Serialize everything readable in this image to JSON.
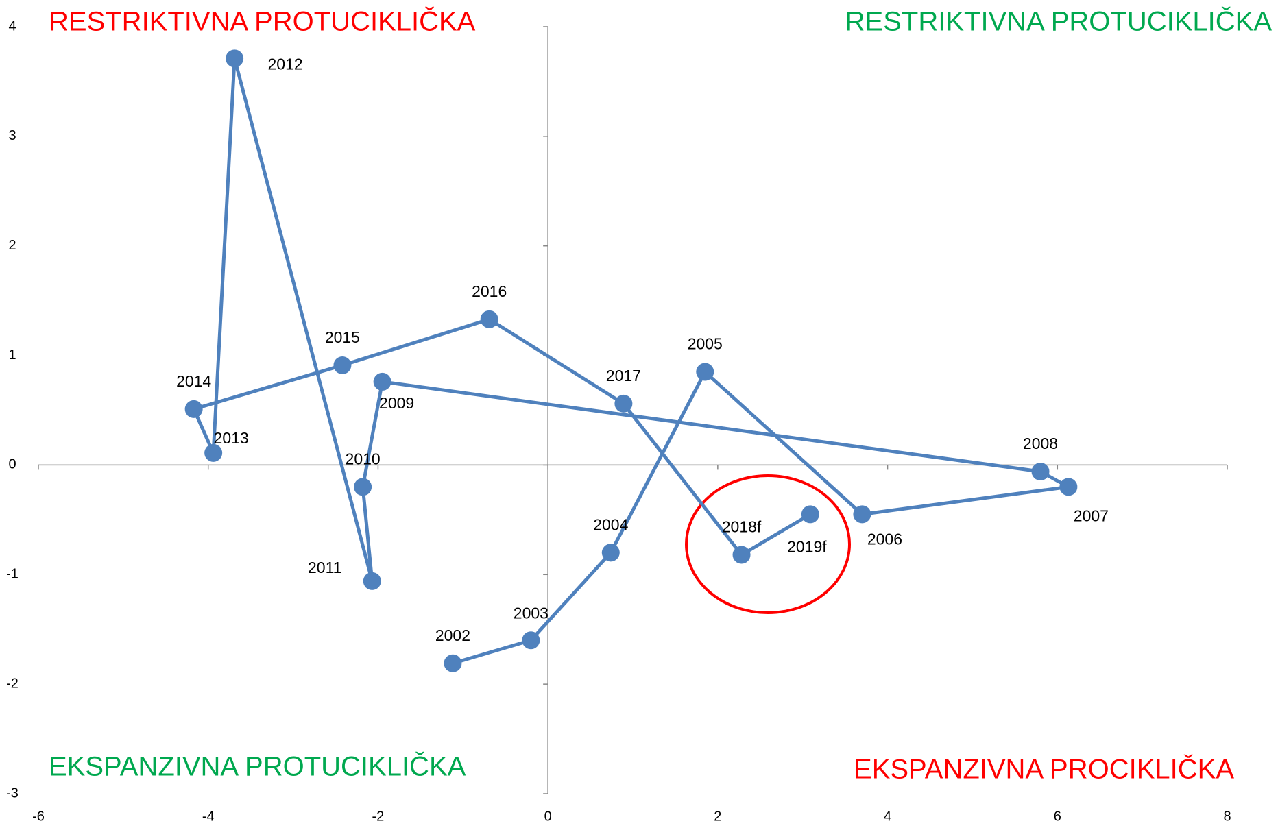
{
  "chart_data": {
    "type": "scatter",
    "connected": true,
    "series": [
      {
        "color": "#4f81bd",
        "labels": [
          "2002",
          "2003",
          "2004",
          "2005",
          "2006",
          "2007",
          "2008",
          "2009",
          "2010",
          "2011",
          "2012",
          "2013",
          "2014",
          "2015",
          "2016",
          "2017",
          "2018f",
          "2019f"
        ],
        "x": [
          -1.12,
          -0.2,
          0.74,
          1.85,
          3.7,
          6.13,
          5.8,
          -1.95,
          -2.18,
          -2.07,
          -3.69,
          -3.94,
          -4.17,
          -2.42,
          -0.69,
          0.89,
          2.28,
          3.09
        ],
        "values": [
          -1.81,
          -1.6,
          -0.8,
          0.85,
          -0.45,
          -0.2,
          -0.06,
          0.76,
          -0.2,
          -1.06,
          3.71,
          0.11,
          0.51,
          0.91,
          1.33,
          0.56,
          -0.82,
          -0.45
        ]
      }
    ],
    "xlim": [
      -6,
      8
    ],
    "xticks": [
      -6,
      -4,
      -2,
      0,
      2,
      4,
      6,
      8
    ],
    "ylim": [
      -3,
      4
    ],
    "yticks": [
      -3,
      -2,
      -1,
      0,
      1,
      2,
      3,
      4
    ],
    "annotations": [
      {
        "text": "RESTRIKTIVNA PROTUCIKLIČKA",
        "color": "#ff0000",
        "position": "top-left"
      },
      {
        "text": "RESTRIKTIVNA PROTUCIKLIČKA",
        "color": "#00a84f",
        "position": "top-right"
      },
      {
        "text": "EKSPANZIVNA PROTUCIKLIČKA",
        "color": "#00a84f",
        "position": "bottom-left"
      },
      {
        "text": "EKSPANZIVNA PROCIKLIČKA",
        "color": "#ff0000",
        "position": "bottom-right"
      }
    ]
  }
}
